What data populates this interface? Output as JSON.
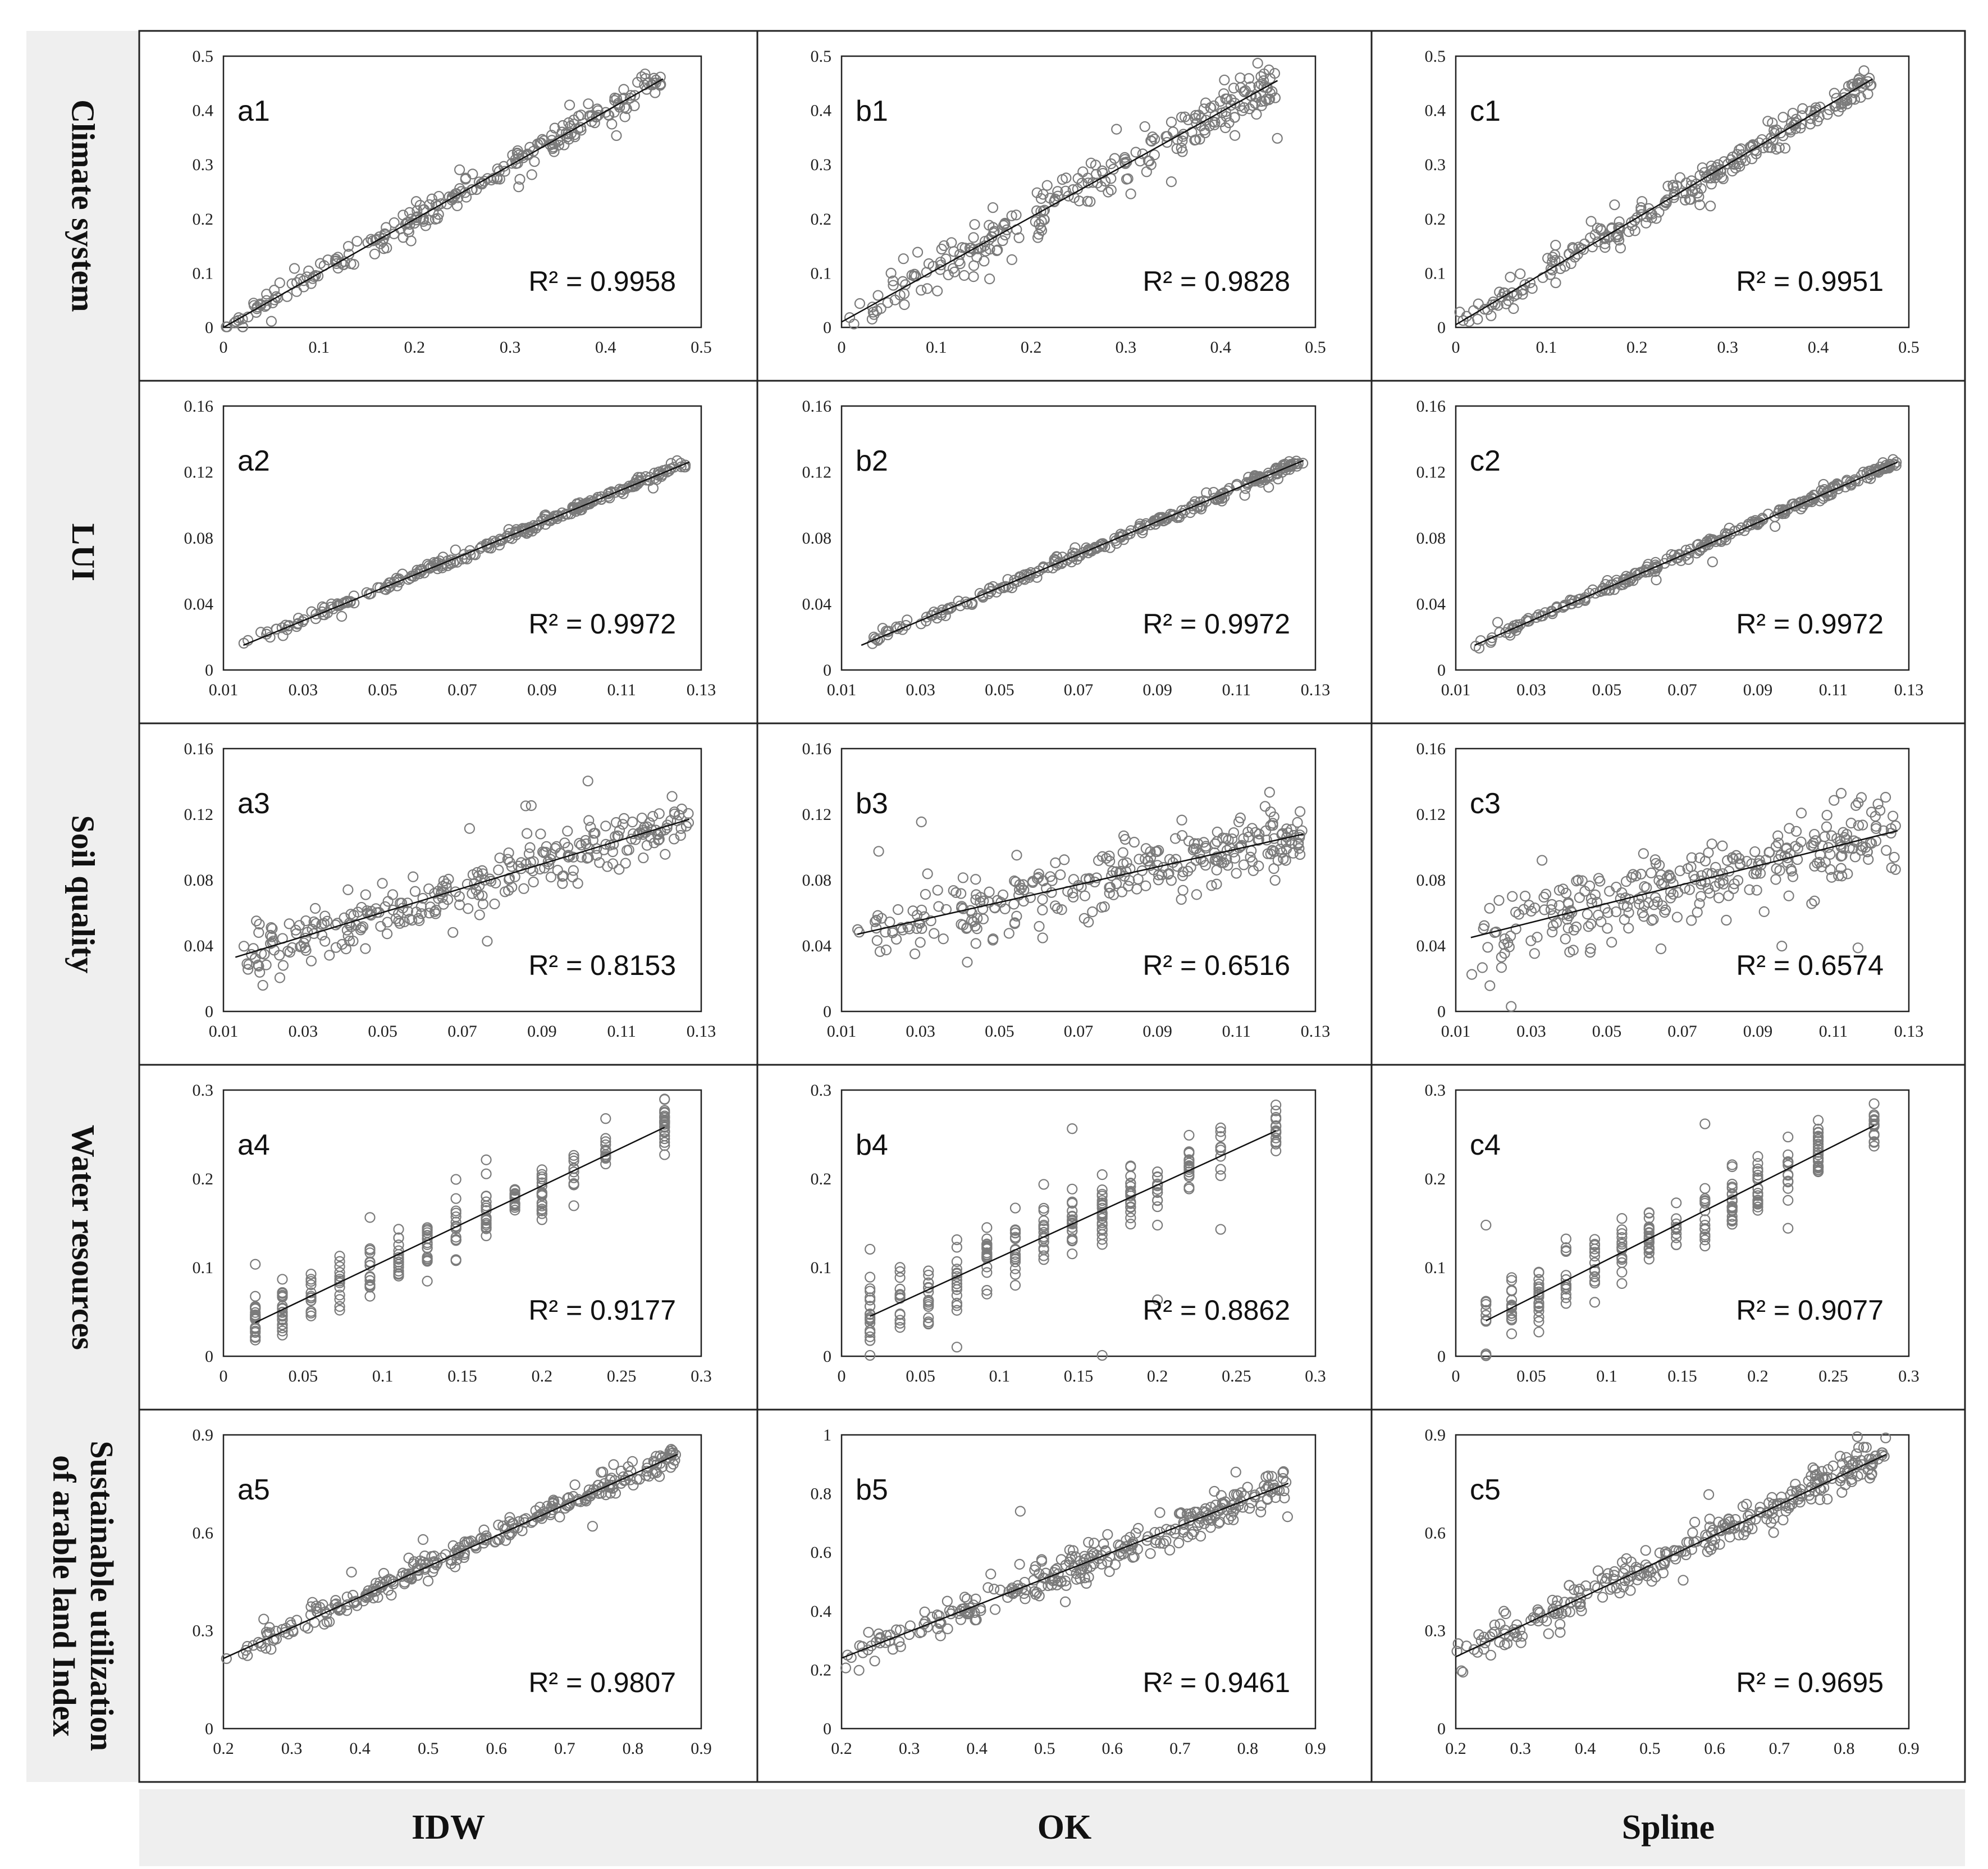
{
  "rows": [
    {
      "label": "Climate system"
    },
    {
      "label": "LUI"
    },
    {
      "label": "Soil quality"
    },
    {
      "label": "Water resources"
    },
    {
      "label": "Sustainable utilization of arable land Index",
      "label_lines": [
        "Sustainable utilization",
        "of arable land Index"
      ]
    }
  ],
  "columns": [
    {
      "label": "IDW"
    },
    {
      "label": "OK"
    },
    {
      "label": "Spline"
    }
  ],
  "chart_data": [
    {
      "id": "a1",
      "type": "scatter",
      "row": 0,
      "col": 0,
      "r2_label": "R² = 0.9958",
      "xlim": [
        0,
        0.5
      ],
      "ylim": [
        0,
        0.5
      ],
      "xticks": [
        "0",
        "0.1",
        "0.2",
        "0.3",
        "0.4",
        "0.5"
      ],
      "yticks": [
        "0",
        "0.1",
        "0.2",
        "0.3",
        "0.4",
        "0.5"
      ],
      "trend": [
        [
          0,
          0.0
        ],
        [
          0.46,
          0.458
        ]
      ],
      "n": 260,
      "noise": 0.012,
      "x_range": [
        0.0,
        0.46
      ]
    },
    {
      "id": "b1",
      "type": "scatter",
      "row": 0,
      "col": 1,
      "r2_label": "R² = 0.9828",
      "xlim": [
        0,
        0.5
      ],
      "ylim": [
        0,
        0.5
      ],
      "xticks": [
        "0",
        "0.1",
        "0.2",
        "0.3",
        "0.4",
        "0.5"
      ],
      "yticks": [
        "0",
        "0.1",
        "0.2",
        "0.3",
        "0.4",
        "0.5"
      ],
      "trend": [
        [
          0,
          0.01
        ],
        [
          0.46,
          0.455
        ]
      ],
      "n": 260,
      "noise": 0.022,
      "x_range": [
        0.0,
        0.46
      ]
    },
    {
      "id": "c1",
      "type": "scatter",
      "row": 0,
      "col": 2,
      "r2_label": "R² = 0.9951",
      "xlim": [
        0,
        0.5
      ],
      "ylim": [
        0,
        0.5
      ],
      "xticks": [
        "0",
        "0.1",
        "0.2",
        "0.3",
        "0.4",
        "0.5"
      ],
      "yticks": [
        "0",
        "0.1",
        "0.2",
        "0.3",
        "0.4",
        "0.5"
      ],
      "trend": [
        [
          0,
          0.005
        ],
        [
          0.46,
          0.458
        ]
      ],
      "n": 260,
      "noise": 0.013,
      "x_range": [
        0.0,
        0.46
      ]
    },
    {
      "id": "a2",
      "type": "scatter",
      "row": 1,
      "col": 0,
      "r2_label": "R² = 0.9972",
      "xlim": [
        0.01,
        0.13
      ],
      "ylim": [
        0,
        0.16
      ],
      "xticks": [
        "0.01",
        "0.03",
        "0.05",
        "0.07",
        "0.09",
        "0.11",
        "0.13"
      ],
      "yticks": [
        "0",
        "0.04",
        "0.08",
        "0.12",
        "0.16"
      ],
      "trend": [
        [
          0.015,
          0.015
        ],
        [
          0.127,
          0.126
        ]
      ],
      "n": 260,
      "noise": 0.0015,
      "x_range": [
        0.015,
        0.127
      ]
    },
    {
      "id": "b2",
      "type": "scatter",
      "row": 1,
      "col": 1,
      "r2_label": "R² = 0.9972",
      "xlim": [
        0.01,
        0.13
      ],
      "ylim": [
        0,
        0.16
      ],
      "xticks": [
        "0.01",
        "0.03",
        "0.05",
        "0.07",
        "0.09",
        "0.11",
        "0.13"
      ],
      "yticks": [
        "0",
        "0.04",
        "0.08",
        "0.12",
        "0.16"
      ],
      "trend": [
        [
          0.015,
          0.015
        ],
        [
          0.127,
          0.127
        ]
      ],
      "n": 260,
      "noise": 0.0015,
      "x_range": [
        0.015,
        0.127
      ]
    },
    {
      "id": "c2",
      "type": "scatter",
      "row": 1,
      "col": 2,
      "r2_label": "R² = 0.9972",
      "xlim": [
        0.01,
        0.13
      ],
      "ylim": [
        0,
        0.16
      ],
      "xticks": [
        "0.01",
        "0.03",
        "0.05",
        "0.07",
        "0.09",
        "0.11",
        "0.13"
      ],
      "yticks": [
        "0",
        "0.04",
        "0.08",
        "0.12",
        "0.16"
      ],
      "trend": [
        [
          0.015,
          0.015
        ],
        [
          0.127,
          0.126
        ]
      ],
      "n": 260,
      "noise": 0.0015,
      "x_range": [
        0.015,
        0.127
      ]
    },
    {
      "id": "a3",
      "type": "scatter",
      "row": 2,
      "col": 0,
      "r2_label": "R² = 0.8153",
      "xlim": [
        0.01,
        0.13
      ],
      "ylim": [
        0,
        0.16
      ],
      "xticks": [
        "0.01",
        "0.03",
        "0.05",
        "0.07",
        "0.09",
        "0.11",
        "0.13"
      ],
      "yticks": [
        "0",
        "0.04",
        "0.08",
        "0.12",
        "0.16"
      ],
      "trend": [
        [
          0.013,
          0.033
        ],
        [
          0.127,
          0.117
        ]
      ],
      "n": 300,
      "noise": 0.008,
      "x_range": [
        0.013,
        0.127
      ]
    },
    {
      "id": "b3",
      "type": "scatter",
      "row": 2,
      "col": 1,
      "r2_label": "R² = 0.6516",
      "xlim": [
        0.01,
        0.13
      ],
      "ylim": [
        0,
        0.16
      ],
      "xticks": [
        "0.01",
        "0.03",
        "0.05",
        "0.07",
        "0.09",
        "0.11",
        "0.13"
      ],
      "yticks": [
        "0",
        "0.04",
        "0.08",
        "0.12",
        "0.16"
      ],
      "trend": [
        [
          0.014,
          0.047
        ],
        [
          0.127,
          0.108
        ]
      ],
      "n": 300,
      "noise": 0.01,
      "x_range": [
        0.014,
        0.127
      ]
    },
    {
      "id": "c3",
      "type": "scatter",
      "row": 2,
      "col": 2,
      "r2_label": "R² = 0.6574",
      "xlim": [
        0.01,
        0.13
      ],
      "ylim": [
        0,
        0.16
      ],
      "xticks": [
        "0.01",
        "0.03",
        "0.05",
        "0.07",
        "0.09",
        "0.11",
        "0.13"
      ],
      "yticks": [
        "0",
        "0.04",
        "0.08",
        "0.12",
        "0.16"
      ],
      "trend": [
        [
          0.014,
          0.045
        ],
        [
          0.127,
          0.11
        ]
      ],
      "n": 300,
      "noise": 0.011,
      "x_range": [
        0.014,
        0.127
      ]
    },
    {
      "id": "a4",
      "type": "scatter",
      "row": 3,
      "col": 0,
      "r2_label": "R² = 0.9177",
      "xlim": [
        0,
        0.3
      ],
      "ylim": [
        0,
        0.3
      ],
      "xticks": [
        "0",
        "0.05",
        "0.1",
        "0.15",
        "0.2",
        "0.25",
        "0.3"
      ],
      "yticks": [
        "0",
        "0.1",
        "0.2",
        "0.3"
      ],
      "trend": [
        [
          0.02,
          0.038
        ],
        [
          0.277,
          0.258
        ]
      ],
      "n": 240,
      "noise": 0.016,
      "x_range": [
        0.02,
        0.277
      ],
      "discrete_x": [
        0.02,
        0.037,
        0.055,
        0.073,
        0.092,
        0.11,
        0.128,
        0.146,
        0.165,
        0.183,
        0.2,
        0.22,
        0.24,
        0.277
      ]
    },
    {
      "id": "b4",
      "type": "scatter",
      "row": 3,
      "col": 1,
      "r2_label": "R² = 0.8862",
      "xlim": [
        0,
        0.3
      ],
      "ylim": [
        0,
        0.3
      ],
      "xticks": [
        "0",
        "0.05",
        "0.1",
        "0.15",
        "0.2",
        "0.25",
        "0.3"
      ],
      "yticks": [
        "0",
        "0.1",
        "0.2",
        "0.3"
      ],
      "trend": [
        [
          0.018,
          0.045
        ],
        [
          0.275,
          0.254
        ]
      ],
      "n": 240,
      "noise": 0.02,
      "x_range": [
        0.018,
        0.275
      ],
      "discrete_x": [
        0.018,
        0.037,
        0.055,
        0.073,
        0.092,
        0.11,
        0.128,
        0.146,
        0.165,
        0.183,
        0.2,
        0.22,
        0.24,
        0.275
      ]
    },
    {
      "id": "c4",
      "type": "scatter",
      "row": 3,
      "col": 2,
      "r2_label": "R² = 0.9077",
      "xlim": [
        0,
        0.3
      ],
      "ylim": [
        0,
        0.3
      ],
      "xticks": [
        "0",
        "0.05",
        "0.1",
        "0.15",
        "0.2",
        "0.25",
        "0.3"
      ],
      "yticks": [
        "0",
        "0.1",
        "0.2",
        "0.3"
      ],
      "trend": [
        [
          0.02,
          0.04
        ],
        [
          0.277,
          0.26
        ]
      ],
      "n": 240,
      "noise": 0.017,
      "x_range": [
        0.02,
        0.277
      ],
      "discrete_x": [
        0.02,
        0.037,
        0.055,
        0.073,
        0.092,
        0.11,
        0.128,
        0.146,
        0.165,
        0.183,
        0.2,
        0.22,
        0.24,
        0.277
      ]
    },
    {
      "id": "a5",
      "type": "scatter",
      "row": 4,
      "col": 0,
      "r2_label": "R² = 0.9807",
      "xlim": [
        0.2,
        0.9
      ],
      "ylim": [
        0,
        0.9
      ],
      "xticks": [
        "0.2",
        "0.3",
        "0.4",
        "0.5",
        "0.6",
        "0.7",
        "0.8",
        "0.9"
      ],
      "yticks": [
        "0",
        "0.3",
        "0.6",
        "0.9"
      ],
      "trend": [
        [
          0.2,
          0.215
        ],
        [
          0.865,
          0.84
        ]
      ],
      "n": 300,
      "noise": 0.018,
      "x_range": [
        0.2,
        0.865
      ]
    },
    {
      "id": "b5",
      "type": "scatter",
      "row": 4,
      "col": 1,
      "r2_label": "R² = 0.9461",
      "xlim": [
        0.2,
        0.9
      ],
      "ylim": [
        0,
        1
      ],
      "xticks": [
        "0.2",
        "0.3",
        "0.4",
        "0.5",
        "0.6",
        "0.7",
        "0.8",
        "0.9"
      ],
      "yticks": [
        "0",
        "0.2",
        "0.4",
        "0.6",
        "0.8",
        "1"
      ],
      "trend": [
        [
          0.2,
          0.24
        ],
        [
          0.86,
          0.835
        ]
      ],
      "n": 300,
      "noise": 0.03,
      "x_range": [
        0.2,
        0.86
      ]
    },
    {
      "id": "c5",
      "type": "scatter",
      "row": 4,
      "col": 2,
      "r2_label": "R² = 0.9695",
      "xlim": [
        0.2,
        0.9
      ],
      "ylim": [
        0,
        0.9
      ],
      "xticks": [
        "0.2",
        "0.3",
        "0.4",
        "0.5",
        "0.6",
        "0.7",
        "0.8",
        "0.9"
      ],
      "yticks": [
        "0",
        "0.3",
        "0.6",
        "0.9"
      ],
      "trend": [
        [
          0.2,
          0.22
        ],
        [
          0.865,
          0.84
        ]
      ],
      "n": 300,
      "noise": 0.025,
      "x_range": [
        0.2,
        0.865
      ]
    }
  ]
}
